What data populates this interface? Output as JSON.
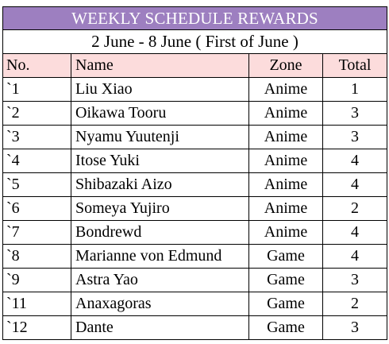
{
  "colors": {
    "title_background": "#9d7fc0",
    "title_text": "#ffffff",
    "header_background": "#fcdcdc",
    "grid_lines": "#000000"
  },
  "title": "WEEKLY SCHEDULE REWARDS",
  "subtitle": "2 June - 8 June ( First of June )",
  "headers": {
    "no": "No.",
    "name": "Name",
    "zone": "Zone",
    "total": "Total"
  },
  "rows": [
    {
      "no": "`1",
      "name": "Liu Xiao",
      "zone": "Anime",
      "total": "1"
    },
    {
      "no": "`2",
      "name": "Oikawa Tooru",
      "zone": "Anime",
      "total": "3"
    },
    {
      "no": "`3",
      "name": "Nyamu Yuutenji",
      "zone": "Anime",
      "total": "3"
    },
    {
      "no": "`4",
      "name": "Itose Yuki",
      "zone": "Anime",
      "total": "4"
    },
    {
      "no": "`5",
      "name": "Shibazaki Aizo",
      "zone": "Anime",
      "total": "4"
    },
    {
      "no": "`6",
      "name": "Someya Yujiro",
      "zone": "Anime",
      "total": "2"
    },
    {
      "no": "`7",
      "name": "Bondrewd",
      "zone": "Anime",
      "total": "4"
    },
    {
      "no": "`8",
      "name": "Marianne von Edmund",
      "zone": "Game",
      "total": "4"
    },
    {
      "no": "`9",
      "name": "Astra Yao",
      "zone": "Game",
      "total": "3"
    },
    {
      "no": "`11",
      "name": "Anaxagoras",
      "zone": "Game",
      "total": "2"
    },
    {
      "no": "`12",
      "name": "Dante",
      "zone": "Game",
      "total": "3"
    }
  ]
}
